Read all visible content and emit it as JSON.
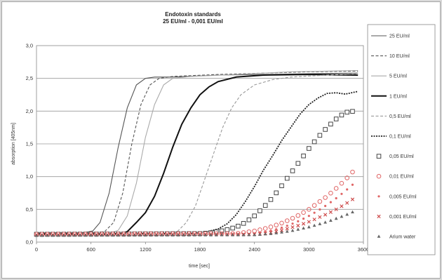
{
  "chart_data": {
    "type": "line",
    "title": "Endotoxin standards",
    "subtitle": "25 EU/ml - 0,001 EU/ml",
    "xlabel": "time [sec]",
    "ylabel": "absorption [405nm]",
    "xlim": [
      0,
      3600
    ],
    "ylim": [
      0,
      3
    ],
    "x_ticks": [
      "0",
      "600",
      "1200",
      "1800",
      "2400",
      "3000",
      "3600"
    ],
    "y_ticks": [
      "0,0",
      "0,5",
      "1,0",
      "1,5",
      "2,0",
      "2,5",
      "3,0"
    ],
    "grid": "horizontal",
    "legend_position": "right",
    "series": [
      {
        "name": "25 EU/ml",
        "style": "solid",
        "color": "#555555",
        "points": [
          [
            0,
            0.14
          ],
          [
            500,
            0.14
          ],
          [
            620,
            0.17
          ],
          [
            700,
            0.3
          ],
          [
            800,
            0.75
          ],
          [
            900,
            1.45
          ],
          [
            1000,
            2.05
          ],
          [
            1100,
            2.4
          ],
          [
            1200,
            2.5
          ],
          [
            1300,
            2.52
          ],
          [
            1500,
            2.52
          ],
          [
            2000,
            2.55
          ],
          [
            2500,
            2.56
          ],
          [
            3000,
            2.57
          ],
          [
            3540,
            2.58
          ]
        ]
      },
      {
        "name": "10 EU/ml",
        "style": "dashed",
        "color": "#555555",
        "points": [
          [
            0,
            0.14
          ],
          [
            600,
            0.14
          ],
          [
            750,
            0.16
          ],
          [
            850,
            0.3
          ],
          [
            950,
            0.75
          ],
          [
            1050,
            1.5
          ],
          [
            1150,
            2.1
          ],
          [
            1250,
            2.4
          ],
          [
            1350,
            2.5
          ],
          [
            1500,
            2.53
          ],
          [
            2000,
            2.56
          ],
          [
            2500,
            2.58
          ],
          [
            3000,
            2.6
          ],
          [
            3540,
            2.61
          ]
        ]
      },
      {
        "name": "5 EU/ml",
        "style": "solid",
        "color": "#aaaaaa",
        "points": [
          [
            0,
            0.13
          ],
          [
            800,
            0.13
          ],
          [
            900,
            0.18
          ],
          [
            1000,
            0.4
          ],
          [
            1100,
            0.9
          ],
          [
            1200,
            1.6
          ],
          [
            1300,
            2.1
          ],
          [
            1400,
            2.4
          ],
          [
            1500,
            2.5
          ],
          [
            1700,
            2.53
          ],
          [
            2200,
            2.56
          ],
          [
            2800,
            2.6
          ],
          [
            3540,
            2.62
          ]
        ]
      },
      {
        "name": "1 EU/ml",
        "style": "solid-bold",
        "color": "#111111",
        "points": [
          [
            0,
            0.12
          ],
          [
            900,
            0.12
          ],
          [
            1000,
            0.16
          ],
          [
            1100,
            0.3
          ],
          [
            1200,
            0.45
          ],
          [
            1300,
            0.7
          ],
          [
            1400,
            1.05
          ],
          [
            1500,
            1.45
          ],
          [
            1600,
            1.8
          ],
          [
            1700,
            2.05
          ],
          [
            1800,
            2.25
          ],
          [
            1900,
            2.37
          ],
          [
            2000,
            2.45
          ],
          [
            2200,
            2.52
          ],
          [
            2500,
            2.55
          ],
          [
            3000,
            2.56
          ],
          [
            3540,
            2.55
          ]
        ]
      },
      {
        "name": "0,5 EU/ml",
        "style": "dashed",
        "color": "#999999",
        "points": [
          [
            0,
            0.12
          ],
          [
            1450,
            0.12
          ],
          [
            1550,
            0.16
          ],
          [
            1650,
            0.3
          ],
          [
            1750,
            0.55
          ],
          [
            1850,
            0.95
          ],
          [
            1950,
            1.35
          ],
          [
            2050,
            1.75
          ],
          [
            2150,
            2.05
          ],
          [
            2250,
            2.25
          ],
          [
            2400,
            2.4
          ],
          [
            2600,
            2.48
          ],
          [
            2800,
            2.52
          ],
          [
            3200,
            2.55
          ],
          [
            3540,
            2.57
          ]
        ]
      },
      {
        "name": "0,1 EU/ml",
        "style": "dotted",
        "color": "#222222",
        "points": [
          [
            0,
            0.13
          ],
          [
            1700,
            0.13
          ],
          [
            1850,
            0.15
          ],
          [
            2000,
            0.2
          ],
          [
            2100,
            0.28
          ],
          [
            2200,
            0.42
          ],
          [
            2300,
            0.62
          ],
          [
            2400,
            0.85
          ],
          [
            2500,
            1.1
          ],
          [
            2600,
            1.32
          ],
          [
            2700,
            1.55
          ],
          [
            2800,
            1.75
          ],
          [
            2900,
            1.95
          ],
          [
            3000,
            2.1
          ],
          [
            3100,
            2.2
          ],
          [
            3200,
            2.27
          ],
          [
            3300,
            2.28
          ],
          [
            3400,
            2.26
          ],
          [
            3540,
            2.3
          ]
        ]
      },
      {
        "name": "0,05 EU/ml",
        "style": "square",
        "color": "#444444",
        "points": [
          [
            0,
            0.12
          ],
          [
            1800,
            0.13
          ],
          [
            1900,
            0.14
          ],
          [
            2000,
            0.16
          ],
          [
            2100,
            0.19
          ],
          [
            2200,
            0.23
          ],
          [
            2300,
            0.3
          ],
          [
            2400,
            0.4
          ],
          [
            2500,
            0.53
          ],
          [
            2600,
            0.68
          ],
          [
            2700,
            0.86
          ],
          [
            2800,
            1.05
          ],
          [
            2900,
            1.24
          ],
          [
            3000,
            1.43
          ],
          [
            3100,
            1.6
          ],
          [
            3200,
            1.75
          ],
          [
            3300,
            1.88
          ],
          [
            3400,
            1.98
          ],
          [
            3500,
            2.0
          ]
        ]
      },
      {
        "name": "0,01 EU/ml",
        "style": "circle",
        "color": "#e06666",
        "points": [
          [
            0,
            0.12
          ],
          [
            2200,
            0.13
          ],
          [
            2300,
            0.15
          ],
          [
            2400,
            0.17
          ],
          [
            2500,
            0.2
          ],
          [
            2600,
            0.24
          ],
          [
            2700,
            0.29
          ],
          [
            2800,
            0.35
          ],
          [
            2900,
            0.42
          ],
          [
            3000,
            0.5
          ],
          [
            3100,
            0.6
          ],
          [
            3200,
            0.7
          ],
          [
            3300,
            0.82
          ],
          [
            3400,
            0.95
          ],
          [
            3500,
            1.1
          ]
        ]
      },
      {
        "name": "0,005 EU/ml",
        "style": "small",
        "color": "#e06666",
        "points": [
          [
            0,
            0.11
          ],
          [
            2300,
            0.12
          ],
          [
            2400,
            0.13
          ],
          [
            2500,
            0.15
          ],
          [
            2600,
            0.18
          ],
          [
            2700,
            0.22
          ],
          [
            2800,
            0.27
          ],
          [
            2900,
            0.33
          ],
          [
            3000,
            0.4
          ],
          [
            3100,
            0.48
          ],
          [
            3200,
            0.57
          ],
          [
            3300,
            0.67
          ],
          [
            3400,
            0.78
          ],
          [
            3500,
            0.9
          ]
        ]
      },
      {
        "name": "0,001 EU/ml",
        "style": "x",
        "color": "#cc4444",
        "points": [
          [
            0,
            0.11
          ],
          [
            2400,
            0.12
          ],
          [
            2500,
            0.13
          ],
          [
            2600,
            0.15
          ],
          [
            2700,
            0.18
          ],
          [
            2800,
            0.22
          ],
          [
            2900,
            0.26
          ],
          [
            3000,
            0.31
          ],
          [
            3100,
            0.37
          ],
          [
            3200,
            0.43
          ],
          [
            3300,
            0.5
          ],
          [
            3400,
            0.58
          ],
          [
            3500,
            0.67
          ]
        ]
      },
      {
        "name": "Arium water",
        "style": "triangle",
        "color": "#666666",
        "points": [
          [
            0,
            0.1
          ],
          [
            2400,
            0.11
          ],
          [
            2500,
            0.12
          ],
          [
            2600,
            0.13
          ],
          [
            2700,
            0.15
          ],
          [
            2800,
            0.17
          ],
          [
            2900,
            0.2
          ],
          [
            3000,
            0.23
          ],
          [
            3100,
            0.27
          ],
          [
            3200,
            0.31
          ],
          [
            3300,
            0.36
          ],
          [
            3400,
            0.41
          ],
          [
            3500,
            0.47
          ]
        ]
      }
    ]
  }
}
